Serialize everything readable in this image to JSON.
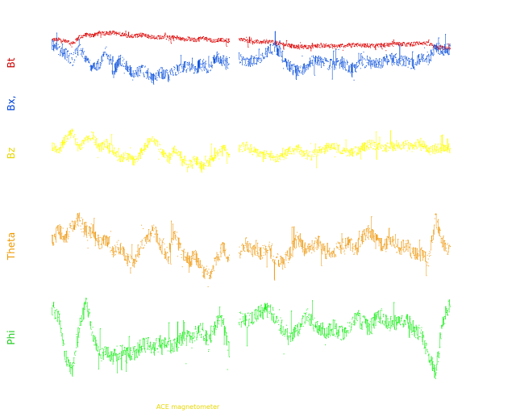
{
  "chart_data": {
    "type": "scatter",
    "footer": "ACE magnetometer",
    "panels": [
      {
        "id": "bt-bx",
        "ylabels": [
          {
            "text": "Bt",
            "color": "#cc0000"
          },
          {
            "text": "Bx,",
            "color": "#0044dd"
          }
        ],
        "series": [
          {
            "name": "Bt",
            "color": "#dd0000",
            "segments": [
              [
                0.86,
                0.87,
                0.84,
                0.8,
                0.9,
                0.94,
                0.93,
                0.97,
                0.96,
                0.98,
                0.95,
                0.93,
                0.92,
                0.94,
                0.92,
                0.9,
                0.91,
                0.9,
                0.91,
                0.87,
                0.88,
                0.86,
                0.89,
                0.87,
                0.84,
                0.86,
                0.85
              ],
              [
                0.88,
                0.85,
                0.84,
                0.83,
                0.84,
                0.82,
                0.8,
                0.77,
                0.76,
                0.75,
                0.76,
                0.77,
                0.78,
                0.76,
                0.77,
                0.78,
                0.79,
                0.78,
                0.77,
                0.78,
                0.78,
                0.79,
                0.8,
                0.79,
                0.8,
                0.82,
                0.8,
                0.75,
                0.74,
                0.72
              ]
            ]
          },
          {
            "name": "Bx",
            "color": "#1155dd",
            "segments": [
              [
                0.78,
                0.72,
                0.65,
                0.55,
                0.72,
                0.6,
                0.42,
                0.5,
                0.68,
                0.38,
                0.55,
                0.45,
                0.3,
                0.4,
                0.35,
                0.25,
                0.35,
                0.3,
                0.38,
                0.42,
                0.45,
                0.4,
                0.5,
                0.42,
                0.6,
                0.55,
                0.5
              ],
              [
                0.6,
                0.5,
                0.55,
                0.6,
                0.7,
                0.75,
                0.6,
                0.45,
                0.38,
                0.42,
                0.55,
                0.52,
                0.5,
                0.48,
                0.52,
                0.45,
                0.42,
                0.5,
                0.55,
                0.48,
                0.55,
                0.58,
                0.55,
                0.52,
                0.5,
                0.6,
                0.55,
                0.75,
                0.7,
                0.72
              ]
            ]
          }
        ]
      },
      {
        "id": "bz",
        "ylabels": [
          {
            "text": "Bz",
            "color": "#e6d800"
          }
        ],
        "series": [
          {
            "name": "Bz",
            "color": "#ffff00",
            "segments": [
              [
                0.65,
                0.55,
                0.8,
                0.9,
                0.6,
                0.75,
                0.85,
                0.6,
                0.7,
                0.55,
                0.4,
                0.45,
                0.35,
                0.5,
                0.7,
                0.8,
                0.55,
                0.4,
                0.6,
                0.45,
                0.3,
                0.4,
                0.25,
                0.35,
                0.45,
                0.65,
                0.5
              ],
              [
                0.6,
                0.65,
                0.55,
                0.45,
                0.5,
                0.4,
                0.45,
                0.55,
                0.6,
                0.5,
                0.45,
                0.55,
                0.6,
                0.65,
                0.55,
                0.5,
                0.55,
                0.62,
                0.68,
                0.65,
                0.6,
                0.65,
                0.62,
                0.7,
                0.6,
                0.75,
                0.55,
                0.6,
                0.62,
                0.58
              ]
            ]
          }
        ]
      },
      {
        "id": "theta",
        "ylabels": [
          {
            "text": "Theta",
            "color": "#ee9900"
          }
        ],
        "series": [
          {
            "name": "Theta",
            "color": "#f0a020",
            "segments": [
              [
                0.55,
                0.7,
                0.6,
                0.75,
                0.85,
                0.65,
                0.7,
                0.55,
                0.6,
                0.45,
                0.5,
                0.35,
                0.3,
                0.5,
                0.6,
                0.7,
                0.5,
                0.4,
                0.65,
                0.45,
                0.3,
                0.4,
                0.2,
                0.15,
                0.3,
                0.5,
                0.35
              ],
              [
                0.4,
                0.55,
                0.45,
                0.4,
                0.5,
                0.35,
                0.3,
                0.4,
                0.6,
                0.45,
                0.5,
                0.55,
                0.4,
                0.45,
                0.5,
                0.55,
                0.45,
                0.6,
                0.7,
                0.55,
                0.5,
                0.6,
                0.45,
                0.55,
                0.4,
                0.45,
                0.3,
                0.85,
                0.55,
                0.45
              ]
            ]
          }
        ]
      },
      {
        "id": "phi",
        "ylabels": [
          {
            "text": "Phi",
            "color": "#22cc22"
          }
        ],
        "series": [
          {
            "name": "Phi",
            "color": "#22ee22",
            "segments": [
              [
                0.85,
                0.75,
                0.3,
                0.1,
                0.6,
                0.9,
                0.55,
                0.3,
                0.32,
                0.28,
                0.35,
                0.3,
                0.32,
                0.4,
                0.42,
                0.38,
                0.45,
                0.42,
                0.4,
                0.48,
                0.5,
                0.55,
                0.6,
                0.45,
                0.65,
                0.7,
                0.35
              ],
              [
                0.72,
                0.7,
                0.75,
                0.8,
                0.82,
                0.75,
                0.6,
                0.52,
                0.58,
                0.75,
                0.7,
                0.6,
                0.58,
                0.62,
                0.55,
                0.6,
                0.72,
                0.68,
                0.6,
                0.75,
                0.72,
                0.65,
                0.7,
                0.72,
                0.6,
                0.55,
                0.3,
                0.08,
                0.7,
                0.9
              ]
            ]
          }
        ]
      }
    ]
  }
}
